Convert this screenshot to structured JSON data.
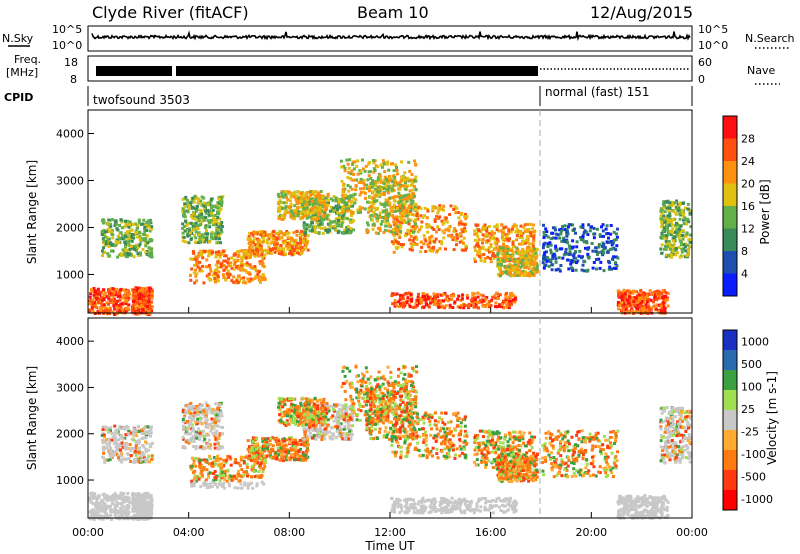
{
  "header": {
    "station": "Clyde River (fitACF)",
    "beam": "Beam 10",
    "date": "12/Aug/2015"
  },
  "panels": {
    "nsky": {
      "label": "N.Sky",
      "tick_top": "10^5",
      "tick_bottom": "10^0",
      "right_tick_top": "10^5",
      "right_tick_bottom": "10^0",
      "right_label": "N.Search"
    },
    "freq": {
      "label_line1": "Freq.",
      "label_line2": "[MHz]",
      "tick_top": "18",
      "tick_bottom": "8",
      "right_tick_top": "60",
      "right_tick_bottom": "0",
      "right_label": "Nave"
    },
    "cpid": {
      "label": "CPID",
      "mode1": "twofsound 3503",
      "mode2": "normal (fast) 151"
    }
  },
  "colors": {
    "power_scale": [
      "#0a1dff",
      "#1d4fb0",
      "#3a8a5a",
      "#62b04a",
      "#e0c010",
      "#ff9010",
      "#ff5010",
      "#ff1010"
    ],
    "velocity_scale": [
      "#ff0000",
      "#ff3a10",
      "#ff7a10",
      "#ffaa30",
      "#c8c8c8",
      "#a0e050",
      "#3aa040",
      "#2a6ab0",
      "#1a30c0"
    ],
    "ground_scatter": "#c8c8c8"
  },
  "chart_data": [
    {
      "type": "heatmap",
      "title": "Power",
      "xlabel": "",
      "ylabel": "Slant Range [km]",
      "x_ticks": [
        "00:00",
        "04:00",
        "08:00",
        "12:00",
        "16:00",
        "20:00",
        "00:00"
      ],
      "x_range_hours": [
        0,
        24
      ],
      "y_ticks": [
        "1000",
        "2000",
        "3000",
        "4000"
      ],
      "y_range_km": [
        180,
        4500
      ],
      "colorbar_label": "Power [dB]",
      "colorbar_ticks": [
        "4",
        "8",
        "12",
        "16",
        "20",
        "24",
        "28"
      ],
      "colorbar_range": [
        0,
        32
      ],
      "mode_change_hour": 18.0
    },
    {
      "type": "heatmap",
      "title": "Velocity",
      "xlabel": "Time UT",
      "ylabel": "Slant Range [km]",
      "x_ticks": [
        "00:00",
        "04:00",
        "08:00",
        "12:00",
        "16:00",
        "20:00",
        "00:00"
      ],
      "x_range_hours": [
        0,
        24
      ],
      "y_ticks": [
        "1000",
        "2000",
        "3000",
        "4000"
      ],
      "y_range_km": [
        180,
        4500
      ],
      "colorbar_label": "Velocity [m s-1]",
      "colorbar_ticks": [
        "1000",
        "500",
        "100",
        "25",
        "-25",
        "-100",
        "-500",
        "-1000"
      ],
      "mode_change_hour": 18.0
    }
  ]
}
